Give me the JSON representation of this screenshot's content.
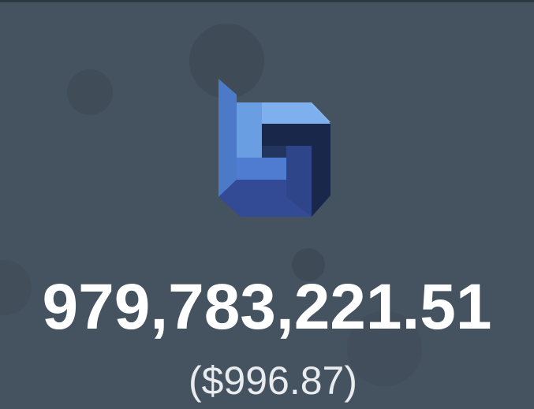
{
  "wallet": {
    "token_icon": "blue-3d-g-logo-icon",
    "balance": "979,783,221.51",
    "fiat_value": "($996.87)"
  },
  "colors": {
    "background": "#45525f",
    "logo_light_blue": "#7fb0ee",
    "logo_mid_blue": "#4d79c9",
    "logo_dark_blue": "#334a94",
    "logo_navy": "#19274a"
  }
}
